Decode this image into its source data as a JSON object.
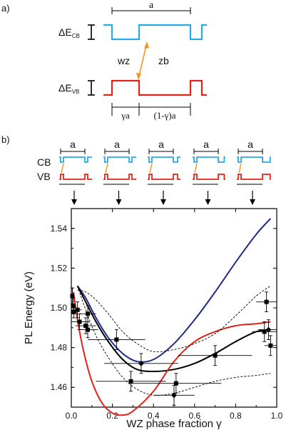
{
  "panel_a": {
    "label": "a)",
    "period_label": "a",
    "cb_offset_label": "ΔE",
    "cb_offset_sub": "CB",
    "vb_offset_label": "ΔE",
    "vb_offset_sub": "VB",
    "wz_label": "wz",
    "zb_label": "zb",
    "wz_width_label": "γa",
    "zb_width_label": "(1-γ)a",
    "colors": {
      "cb": "#29a9e1",
      "vb": "#e2231a",
      "arrow": "#f7941d"
    }
  },
  "panel_b": {
    "label": "b)",
    "cb_label": "CB",
    "vb_label": "VB",
    "period_label": "a",
    "schematic_gammas": [
      0.1,
      0.3,
      0.5,
      0.7,
      0.9
    ]
  },
  "chart_data": {
    "type": "scatter",
    "xlabel": "WZ phase fraction γ",
    "ylabel": "PL Energy (eV)",
    "xlim": [
      0.0,
      1.0
    ],
    "ylim": [
      1.45,
      1.55
    ],
    "xticks": [
      "0.0",
      "0.2",
      "0.4",
      "0.6",
      "0.8",
      "1.0"
    ],
    "yticks": [
      "1.46",
      "1.48",
      "1.50",
      "1.52",
      "1.54"
    ],
    "grid": false,
    "colors": {
      "blue": "#1f2a8c",
      "black": "#000000",
      "red": "#e2231a",
      "dashed": "#000000"
    },
    "lines": [
      {
        "style": "blue",
        "x": [
          0.03,
          0.07,
          0.12,
          0.18,
          0.25,
          0.32,
          0.4,
          0.5,
          0.6,
          0.7,
          0.8,
          0.9,
          0.97
        ],
        "y": [
          1.511,
          1.505,
          1.495,
          1.485,
          1.477,
          1.473,
          1.474,
          1.482,
          1.494,
          1.508,
          1.523,
          1.537,
          1.545
        ]
      },
      {
        "style": "black",
        "x": [
          0.03,
          0.07,
          0.12,
          0.18,
          0.25,
          0.32,
          0.4,
          0.5,
          0.6,
          0.7,
          0.8,
          0.9,
          0.97
        ],
        "y": [
          1.511,
          1.503,
          1.493,
          1.483,
          1.474,
          1.469,
          1.468,
          1.469,
          1.472,
          1.477,
          1.483,
          1.488,
          1.489
        ]
      },
      {
        "style": "red",
        "x": [
          0.01,
          0.03,
          0.06,
          0.1,
          0.15,
          0.2,
          0.25,
          0.3,
          0.4,
          0.5,
          0.6,
          0.7,
          0.8,
          0.9,
          0.97
        ],
        "y": [
          1.508,
          1.494,
          1.478,
          1.463,
          1.452,
          1.447,
          1.446,
          1.448,
          1.458,
          1.473,
          1.483,
          1.488,
          1.491,
          1.492,
          1.493
        ]
      },
      {
        "style": "dashed",
        "x": [
          0.03,
          0.07,
          0.12,
          0.18,
          0.25,
          0.32,
          0.4,
          0.5,
          0.6,
          0.7,
          0.8,
          0.9,
          0.97
        ],
        "y": [
          1.509,
          1.508,
          1.504,
          1.497,
          1.488,
          1.482,
          1.478,
          1.479,
          1.482,
          1.487,
          1.496,
          1.506,
          1.511
        ]
      },
      {
        "style": "dashed",
        "x": [
          0.03,
          0.07,
          0.12,
          0.18,
          0.25,
          0.32,
          0.4,
          0.5,
          0.6,
          0.7,
          0.8,
          0.9,
          0.97
        ],
        "y": [
          1.511,
          1.499,
          1.486,
          1.475,
          1.465,
          1.459,
          1.456,
          1.457,
          1.46,
          1.463,
          1.465,
          1.466,
          1.467
        ]
      }
    ],
    "points": [
      {
        "x": 0.005,
        "y": 1.506,
        "xerr": 0.01,
        "yerr": 0.004,
        "marker": "square"
      },
      {
        "x": 0.01,
        "y": 1.501,
        "xerr": 0.01,
        "yerr": 0.004,
        "marker": "square"
      },
      {
        "x": 0.012,
        "y": 1.498,
        "xerr": 0.01,
        "yerr": 0.003,
        "marker": "square"
      },
      {
        "x": 0.03,
        "y": 1.499,
        "xerr": 0.02,
        "yerr": 0.004,
        "marker": "square"
      },
      {
        "x": 0.04,
        "y": 1.493,
        "xerr": 0.04,
        "yerr": 0.004,
        "marker": "square"
      },
      {
        "x": 0.07,
        "y": 1.491,
        "xerr": 0.05,
        "yerr": 0.004,
        "marker": "square"
      },
      {
        "x": 0.08,
        "y": 1.489,
        "xerr": 0.05,
        "yerr": 0.004,
        "marker": "square"
      },
      {
        "x": 0.08,
        "y": 1.497,
        "xerr": 0.04,
        "yerr": 0.004,
        "marker": "square"
      },
      {
        "x": 0.22,
        "y": 1.484,
        "xerr": 0.14,
        "yerr": 0.005,
        "marker": "square"
      },
      {
        "x": 0.34,
        "y": 1.472,
        "xerr": 0.18,
        "yerr": 0.005,
        "marker": "diamond"
      },
      {
        "x": 0.29,
        "y": 1.463,
        "xerr": 0.17,
        "yerr": 0.005,
        "marker": "square"
      },
      {
        "x": 0.51,
        "y": 1.462,
        "xerr": 0.22,
        "yerr": 0.005,
        "marker": "square"
      },
      {
        "x": 0.5,
        "y": 1.456,
        "xerr": 0.1,
        "yerr": 0.005,
        "marker": "diamond"
      },
      {
        "x": 0.7,
        "y": 1.476,
        "xerr": 0.18,
        "yerr": 0.005,
        "marker": "square"
      },
      {
        "x": 0.95,
        "y": 1.503,
        "xerr": 0.05,
        "yerr": 0.005,
        "marker": "square"
      },
      {
        "x": 0.94,
        "y": 1.488,
        "xerr": 0.06,
        "yerr": 0.005,
        "marker": "square"
      },
      {
        "x": 0.96,
        "y": 1.489,
        "xerr": 0.05,
        "yerr": 0.005,
        "marker": "diamond"
      },
      {
        "x": 0.97,
        "y": 1.481,
        "xerr": 0.03,
        "yerr": 0.005,
        "marker": "square"
      }
    ]
  }
}
